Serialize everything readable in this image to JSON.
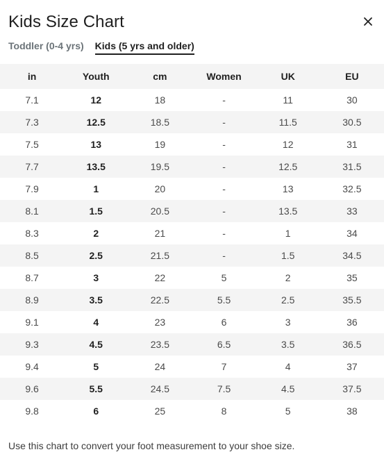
{
  "modal": {
    "title": "Kids Size Chart",
    "close_icon": "close-icon"
  },
  "tabs": [
    {
      "label": "Toddler (0-4 yrs)",
      "active": false
    },
    {
      "label": "Kids (5 yrs and older)",
      "active": true
    }
  ],
  "table": {
    "headers": [
      "in",
      "Youth",
      "cm",
      "Women",
      "UK",
      "EU"
    ],
    "rows": [
      [
        "7.1",
        "12",
        "18",
        "-",
        "11",
        "30"
      ],
      [
        "7.3",
        "12.5",
        "18.5",
        "-",
        "11.5",
        "30.5"
      ],
      [
        "7.5",
        "13",
        "19",
        "-",
        "12",
        "31"
      ],
      [
        "7.7",
        "13.5",
        "19.5",
        "-",
        "12.5",
        "31.5"
      ],
      [
        "7.9",
        "1",
        "20",
        "-",
        "13",
        "32.5"
      ],
      [
        "8.1",
        "1.5",
        "20.5",
        "-",
        "13.5",
        "33"
      ],
      [
        "8.3",
        "2",
        "21",
        "-",
        "1",
        "34"
      ],
      [
        "8.5",
        "2.5",
        "21.5",
        "-",
        "1.5",
        "34.5"
      ],
      [
        "8.7",
        "3",
        "22",
        "5",
        "2",
        "35"
      ],
      [
        "8.9",
        "3.5",
        "22.5",
        "5.5",
        "2.5",
        "35.5"
      ],
      [
        "9.1",
        "4",
        "23",
        "6",
        "3",
        "36"
      ],
      [
        "9.3",
        "4.5",
        "23.5",
        "6.5",
        "3.5",
        "36.5"
      ],
      [
        "9.4",
        "5",
        "24",
        "7",
        "4",
        "37"
      ],
      [
        "9.6",
        "5.5",
        "24.5",
        "7.5",
        "4.5",
        "37.5"
      ],
      [
        "9.8",
        "6",
        "25",
        "8",
        "5",
        "38"
      ]
    ]
  },
  "note": "Use this chart to convert your foot measurement to your shoe size.",
  "colors": {
    "text": "#1f1f1f",
    "muted_tab": "#6b7378",
    "stripe": "#f4f4f4"
  }
}
